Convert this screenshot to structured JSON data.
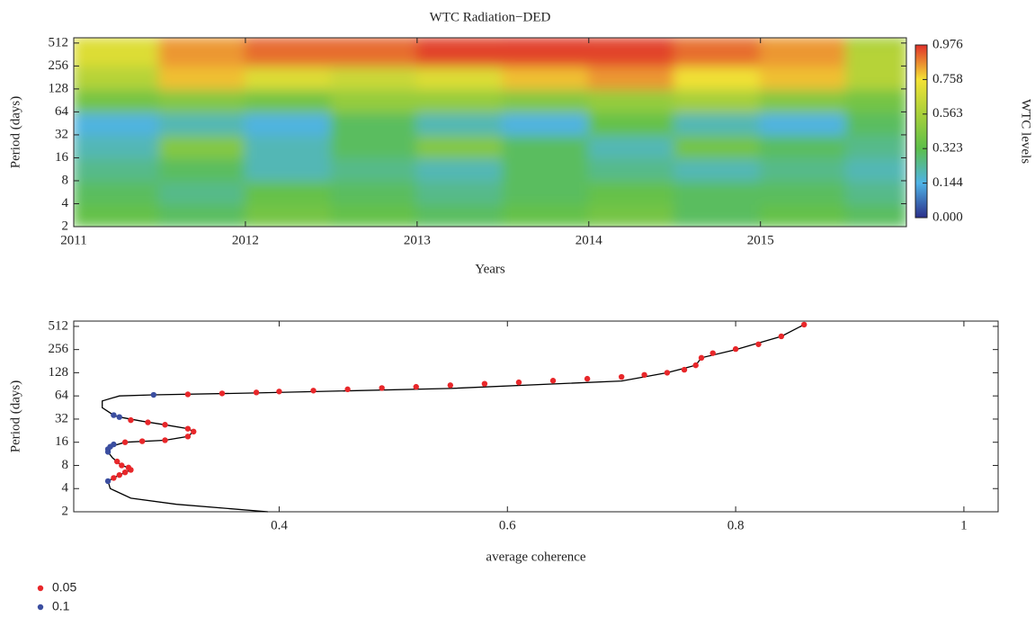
{
  "chart_data": [
    {
      "type": "heatmap",
      "title": "WTC Radiation−DED",
      "xlabel": "Years",
      "ylabel": "Period (days)",
      "xlim": [
        2011,
        2015.85
      ],
      "xticks": [
        2011,
        2012,
        2013,
        2014,
        2015
      ],
      "ylim": [
        2,
        600
      ],
      "ylog": true,
      "yticks": [
        2,
        4,
        8,
        16,
        32,
        64,
        128,
        256,
        512
      ],
      "xbins": [
        2011,
        2011.5,
        2012,
        2012.5,
        2013,
        2013.5,
        2014,
        2014.5,
        2015,
        2015.5,
        2015.85
      ],
      "ybins": [
        2,
        4,
        8,
        16,
        32,
        64,
        128,
        256,
        512,
        600
      ],
      "z": [
        [
          0.35,
          0.3,
          0.4,
          0.35,
          0.3,
          0.35,
          0.4,
          0.3,
          0.35,
          0.3
        ],
        [
          0.3,
          0.25,
          0.35,
          0.3,
          0.25,
          0.3,
          0.35,
          0.3,
          0.3,
          0.25
        ],
        [
          0.25,
          0.3,
          0.2,
          0.25,
          0.2,
          0.3,
          0.25,
          0.2,
          0.25,
          0.2
        ],
        [
          0.2,
          0.45,
          0.2,
          0.3,
          0.45,
          0.3,
          0.2,
          0.4,
          0.3,
          0.25
        ],
        [
          0.15,
          0.2,
          0.15,
          0.3,
          0.2,
          0.15,
          0.35,
          0.2,
          0.15,
          0.3
        ],
        [
          0.4,
          0.45,
          0.4,
          0.5,
          0.5,
          0.45,
          0.5,
          0.55,
          0.45,
          0.4
        ],
        [
          0.6,
          0.8,
          0.7,
          0.65,
          0.7,
          0.8,
          0.85,
          0.75,
          0.8,
          0.6
        ],
        [
          0.7,
          0.85,
          0.9,
          0.9,
          0.95,
          0.95,
          0.95,
          0.9,
          0.85,
          0.6
        ],
        [
          0.7,
          0.85,
          0.92,
          0.92,
          0.96,
          0.97,
          0.96,
          0.9,
          0.85,
          0.55
        ]
      ],
      "colorbar": {
        "label": "WTC levels",
        "ticks": [
          {
            "value": 0,
            "label": "0.000"
          },
          {
            "value": 0.144,
            "label": "0.144"
          },
          {
            "value": 0.323,
            "label": "0.323"
          },
          {
            "value": 0.563,
            "label": "0.563"
          },
          {
            "value": 0.758,
            "label": "0.758"
          },
          {
            "value": 0.976,
            "label": "0.976"
          }
        ],
        "colors": [
          "#2b2f8a",
          "#4fb3e6",
          "#5cbf4a",
          "#a8d03a",
          "#f4e235",
          "#e0302a"
        ]
      }
    },
    {
      "type": "line",
      "xlabel": "average coherence",
      "ylabel": "Period (days)",
      "xlim": [
        0.22,
        1.03
      ],
      "xticks": [
        0.4,
        0.6,
        0.8,
        1
      ],
      "ylim": [
        2,
        600
      ],
      "ylog": true,
      "yticks": [
        2,
        4,
        8,
        16,
        32,
        64,
        128,
        256,
        512
      ],
      "curve": {
        "color": "#000000",
        "y": [
          2,
          2.5,
          3,
          4,
          5,
          5.5,
          6,
          7,
          7.5,
          8,
          9,
          10,
          12,
          14,
          16,
          17,
          19,
          22,
          24,
          27,
          30,
          34,
          36,
          45,
          55,
          64,
          66,
          70,
          80,
          100,
          128,
          160,
          200,
          256,
          380,
          540
        ],
        "x": [
          0.39,
          0.31,
          0.27,
          0.252,
          0.25,
          0.255,
          0.26,
          0.27,
          0.268,
          0.262,
          0.258,
          0.254,
          0.25,
          0.252,
          0.265,
          0.3,
          0.32,
          0.325,
          0.32,
          0.3,
          0.28,
          0.26,
          0.255,
          0.245,
          0.245,
          0.26,
          0.29,
          0.38,
          0.55,
          0.7,
          0.74,
          0.765,
          0.77,
          0.8,
          0.84,
          0.86
        ]
      },
      "series": [
        {
          "name": "0.05",
          "color": "#e8272a",
          "x": [
            0.255,
            0.26,
            0.265,
            0.27,
            0.268,
            0.262,
            0.258,
            0.265,
            0.28,
            0.3,
            0.32,
            0.325,
            0.32,
            0.3,
            0.285,
            0.27,
            0.32,
            0.35,
            0.38,
            0.4,
            0.43,
            0.46,
            0.49,
            0.52,
            0.55,
            0.58,
            0.61,
            0.64,
            0.67,
            0.7,
            0.72,
            0.74,
            0.755,
            0.765,
            0.77,
            0.78,
            0.8,
            0.82,
            0.84,
            0.86
          ],
          "y": [
            5.5,
            6,
            6.5,
            7,
            7.5,
            8,
            9,
            16,
            16.5,
            17,
            19,
            22,
            24,
            27,
            29,
            31,
            67,
            69,
            71,
            73,
            75,
            78,
            81,
            84,
            88,
            92,
            96,
            101,
            107,
            113,
            120,
            128,
            140,
            160,
            200,
            230,
            260,
            300,
            380,
            540
          ]
        },
        {
          "name": "0.1",
          "color": "#3b4ea0",
          "x": [
            0.25,
            0.25,
            0.25,
            0.252,
            0.255,
            0.26,
            0.255,
            0.29
          ],
          "y": [
            5,
            12,
            13,
            14,
            15,
            34,
            36,
            66
          ]
        }
      ]
    }
  ]
}
